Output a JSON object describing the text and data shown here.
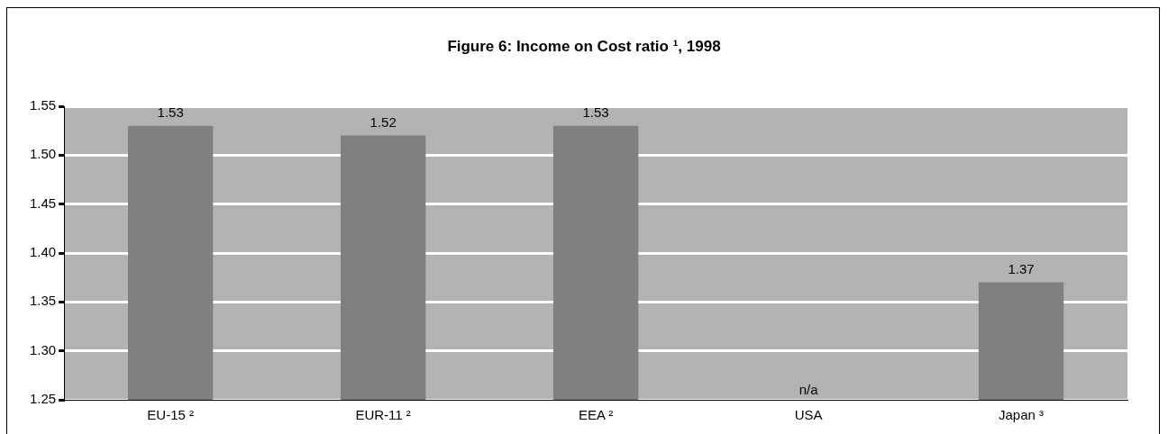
{
  "chart_data": {
    "type": "bar",
    "title": "Figure 6: Income on Cost ratio ¹, 1998",
    "categories": [
      "EU-15 ²",
      "EUR-11 ²",
      "EEA ²",
      "USA",
      "Japan ³"
    ],
    "values": [
      1.53,
      1.52,
      1.53,
      null,
      1.37
    ],
    "value_labels": [
      "1.53",
      "1.52",
      "1.53",
      "n/a",
      "1.37"
    ],
    "color": "#808080",
    "ylim": [
      1.25,
      1.55
    ],
    "yticks": [
      1.25,
      {
        "value": 1.3,
        "label": "1.30"
      },
      1.35,
      {
        "value": 1.4,
        "label": "1.40"
      },
      1.45,
      {
        "value": 1.5,
        "label": "1.50"
      },
      1.55
    ],
    "grid": "y",
    "legend": false
  }
}
